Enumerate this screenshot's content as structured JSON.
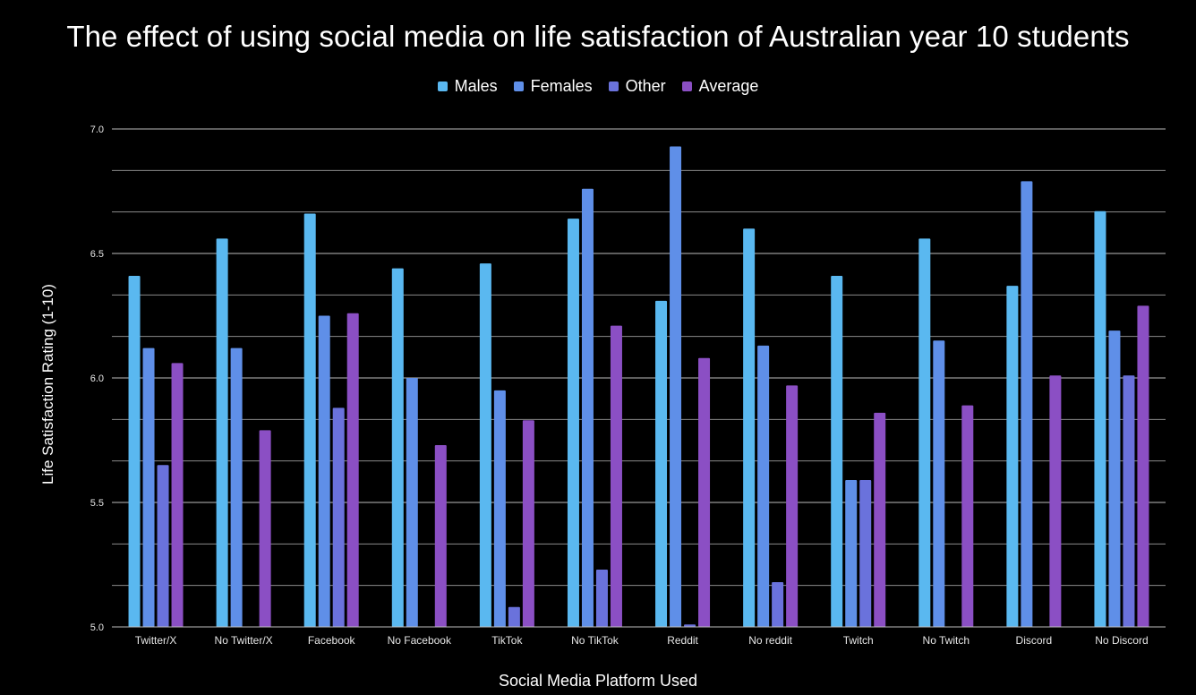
{
  "chart_data": {
    "type": "bar",
    "title": "The effect of using social media on life satisfaction of Australian year 10 students",
    "xlabel": "Social Media Platform Used",
    "ylabel": "Life Satisfaction Rating (1-10)",
    "ylim": [
      5.0,
      7.0
    ],
    "yticks": [
      "5.0",
      "5.5",
      "6.0",
      "6.5",
      "7.0"
    ],
    "grid": true,
    "legend_position": "top",
    "categories": [
      "Twitter/X",
      "No Twitter/X",
      "Facebook",
      "No Facebook",
      "TikTok",
      "No TikTok",
      "Reddit",
      "No reddit",
      "Twitch",
      "No Twitch",
      "Discord",
      "No Discord"
    ],
    "series": [
      {
        "name": "Males",
        "color": "#5ab8f0",
        "values": [
          6.41,
          6.56,
          6.66,
          6.44,
          6.46,
          6.64,
          6.31,
          6.6,
          6.41,
          6.56,
          6.37,
          6.67
        ]
      },
      {
        "name": "Females",
        "color": "#5f8fe8",
        "values": [
          6.12,
          6.12,
          6.25,
          6.0,
          5.95,
          6.76,
          6.93,
          6.13,
          5.59,
          6.15,
          6.79,
          6.19
        ]
      },
      {
        "name": "Other",
        "color": "#6a72dc",
        "values": [
          5.65,
          null,
          5.88,
          null,
          5.08,
          5.23,
          5.01,
          5.18,
          5.59,
          null,
          null,
          6.01
        ]
      },
      {
        "name": "Average",
        "color": "#8b4fc4",
        "values": [
          6.06,
          5.79,
          6.26,
          5.73,
          5.83,
          6.21,
          6.08,
          5.97,
          5.86,
          5.89,
          6.01,
          6.29
        ]
      }
    ]
  }
}
